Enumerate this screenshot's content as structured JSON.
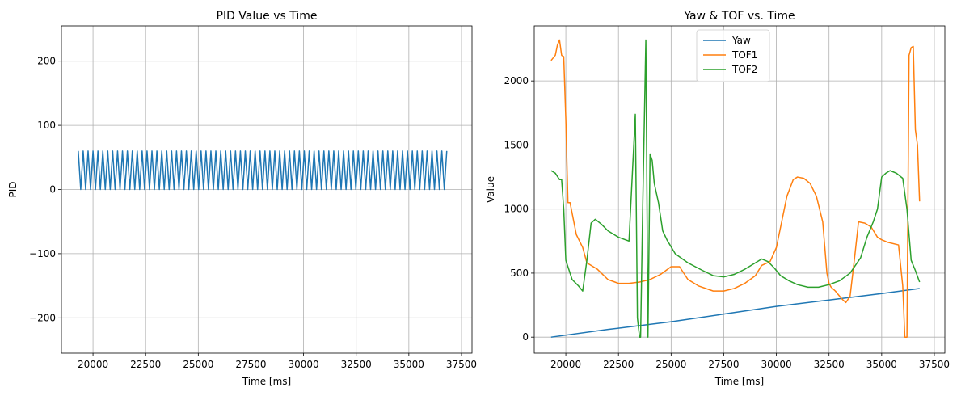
{
  "chart_data": [
    {
      "type": "line",
      "title": "PID Value vs Time",
      "xlabel": "Time [ms]",
      "ylabel": "PID",
      "xlim": [
        18500,
        38000
      ],
      "ylim": [
        -255,
        255
      ],
      "xticks": [
        20000,
        22500,
        25000,
        27500,
        30000,
        32500,
        35000,
        37500
      ],
      "yticks": [
        -200,
        -100,
        0,
        100,
        200
      ],
      "grid": true,
      "series": [
        {
          "color": "#1f77b4",
          "pattern": "sawtooth alternating 0 and 60",
          "x_start": 19300,
          "x_end": 36800,
          "low": 0,
          "high": 60,
          "cycles": 75
        }
      ]
    },
    {
      "type": "line",
      "title": "Yaw & TOF vs. Time",
      "xlabel": "Time [ms]",
      "ylabel": "Value",
      "xlim": [
        18500,
        38000
      ],
      "ylim": [
        -125,
        2430
      ],
      "xticks": [
        20000,
        22500,
        25000,
        27500,
        30000,
        32500,
        35000,
        37500
      ],
      "yticks": [
        0,
        500,
        1000,
        1500,
        2000
      ],
      "grid": true,
      "legend": "top-center",
      "series": [
        {
          "name": "Yaw",
          "color": "#1f77b4",
          "x": [
            19300,
            22000,
            25000,
            27500,
            30000,
            32500,
            35000,
            36800
          ],
          "y": [
            0,
            60,
            120,
            180,
            240,
            290,
            340,
            380
          ]
        },
        {
          "name": "TOF1",
          "color": "#ff7f0e",
          "x": [
            19300,
            19500,
            19600,
            19700,
            19800,
            19900,
            20000,
            20100,
            20200,
            20500,
            20800,
            21000,
            21500,
            22000,
            22500,
            23000,
            23500,
            24000,
            24500,
            25000,
            25400,
            25800,
            26300,
            27000,
            27500,
            28000,
            28500,
            29000,
            29300,
            29700,
            30000,
            30500,
            30800,
            31000,
            31300,
            31600,
            31900,
            32200,
            32400,
            32500,
            32600,
            32800,
            33100,
            33300,
            33500,
            33700,
            33900,
            34200,
            34500,
            34800,
            35000,
            35300,
            35800,
            36000,
            36100,
            36200,
            36300,
            36400,
            36500,
            36600,
            36700,
            36800
          ],
          "y": [
            2160,
            2200,
            2280,
            2320,
            2200,
            2190,
            1700,
            1050,
            1050,
            800,
            700,
            580,
            530,
            450,
            420,
            420,
            430,
            450,
            490,
            550,
            550,
            450,
            400,
            360,
            360,
            380,
            420,
            480,
            560,
            590,
            700,
            1100,
            1230,
            1250,
            1240,
            1200,
            1100,
            900,
            500,
            420,
            390,
            360,
            300,
            270,
            320,
            600,
            900,
            890,
            860,
            780,
            760,
            740,
            720,
            400,
            0,
            0,
            2200,
            2260,
            2270,
            1620,
            1500,
            1060
          ]
        },
        {
          "name": "TOF2",
          "color": "#2ca02c",
          "x": [
            19300,
            19500,
            19700,
            19800,
            19900,
            20000,
            20300,
            20600,
            20800,
            21000,
            21200,
            21400,
            21700,
            22000,
            22500,
            23000,
            23300,
            23400,
            23500,
            23550,
            23650,
            23800,
            23900,
            24000,
            24100,
            24200,
            24400,
            24600,
            24800,
            25200,
            25800,
            26500,
            27000,
            27500,
            28000,
            28500,
            29000,
            29300,
            29600,
            29900,
            30200,
            30600,
            31000,
            31500,
            32000,
            32500,
            33000,
            33500,
            34000,
            34300,
            34600,
            34800,
            35000,
            35200,
            35400,
            35700,
            36000,
            36200,
            36400,
            36600,
            36800
          ],
          "y": [
            1300,
            1280,
            1230,
            1230,
            1000,
            600,
            450,
            400,
            360,
            600,
            890,
            920,
            880,
            830,
            780,
            750,
            1740,
            150,
            0,
            0,
            1000,
            2320,
            0,
            1430,
            1380,
            1200,
            1050,
            830,
            760,
            650,
            580,
            520,
            480,
            470,
            490,
            530,
            580,
            610,
            590,
            540,
            480,
            440,
            410,
            390,
            390,
            410,
            440,
            500,
            620,
            780,
            900,
            1000,
            1250,
            1280,
            1300,
            1280,
            1240,
            1000,
            600,
            520,
            430
          ]
        }
      ]
    }
  ]
}
